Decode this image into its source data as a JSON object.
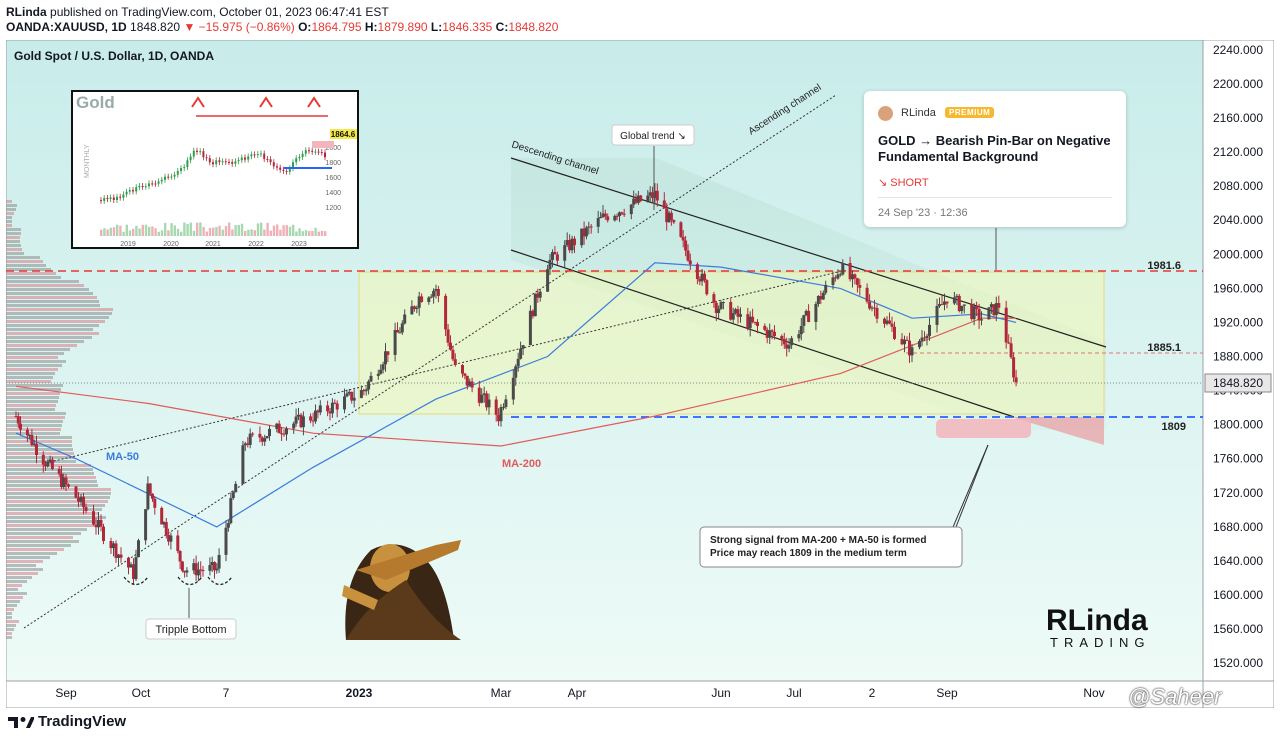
{
  "header": {
    "author": "RLinda",
    "published_text": "published on TradingView.com, October 01, 2023 06:47:41 EST",
    "symbol": "OANDA:XAUUSD, 1D",
    "price": "1848.820",
    "change_arrow": "▼",
    "change": "−15.975 (−0.86%)",
    "o_label": "O:",
    "o": "1864.795",
    "h_label": "H:",
    "h": "1879.890",
    "l_label": "L:",
    "l": "1846.335",
    "c_label": "C:",
    "c": "1848.820"
  },
  "chart_title": "Gold Spot / U.S. Dollar, 1D, OANDA",
  "footer": {
    "brand": "TradingView"
  },
  "watermark": "@Saheer",
  "inset": {
    "title": "Gold",
    "side_label": "MONTHLY",
    "price_tag": "1864.6",
    "y_ticks": [
      "2000",
      "1800",
      "1600",
      "1400",
      "1200"
    ],
    "x_ticks": [
      "2019",
      "2020",
      "2021",
      "2022",
      "2023"
    ]
  },
  "idea_card": {
    "author": "RLinda",
    "badge": "PREMIUM",
    "title": "GOLD → Bearish Pin-Bar on Negative Fundamental Background",
    "direction": "SHORT",
    "date": "24 Sep '23 · 12:36"
  },
  "annotations": {
    "global_trend": "Global trend ↘",
    "descending_channel": "Descending channel",
    "ascending_channel": "Ascending channel",
    "ma50": "MA-50",
    "ma200": "MA-200",
    "tripple_bottom": "Tripple Bottom",
    "signal_line1": "Strong signal from MA-200 + MA-50 is formed",
    "signal_line2": "Price may reach 1809 in the medium term",
    "level_1981": "1981.6",
    "level_1885": "1885.1",
    "level_1809": "1809",
    "logo_main": "RLinda",
    "logo_sub": "TRADING"
  },
  "colors": {
    "bull": "#4a4a4a",
    "bear": "#b2283b",
    "ma50": "#3b7ddd",
    "ma200": "#e05a5a",
    "resistance": "#e53935",
    "support": "#2962ff",
    "bg_top": "#cdeeed",
    "bg_bottom": "#eafaf7"
  },
  "chart_data": {
    "type": "candlestick",
    "title": "Gold Spot / U.S. Dollar, 1D, OANDA",
    "y_axis": {
      "min": 1480,
      "max": 2255,
      "ticks": [
        1520,
        1560,
        1600,
        1640,
        1680,
        1720,
        1760,
        1800,
        1840,
        1880,
        1920,
        1960,
        2000,
        2040,
        2080,
        2120,
        2160,
        2200,
        2240
      ]
    },
    "x_ticks": [
      "Sep",
      "Oct",
      "7",
      "2023",
      "Mar",
      "Apr",
      "Jun",
      "Jul",
      "2",
      "Sep",
      "Nov"
    ],
    "last_price": "1848.820",
    "levels": [
      {
        "name": "resistance",
        "value": 1981.6,
        "label": "1981.6"
      },
      {
        "name": "pin-bar-low",
        "value": 1885.1,
        "label": "1885.1"
      },
      {
        "name": "target",
        "value": 1809,
        "label": "1809"
      }
    ],
    "price_path": [
      {
        "date": "2022-08-10",
        "price": 1810
      },
      {
        "date": "2022-08-22",
        "price": 1760
      },
      {
        "date": "2022-09-05",
        "price": 1715
      },
      {
        "date": "2022-09-28",
        "price": 1625
      },
      {
        "date": "2022-10-04",
        "price": 1725
      },
      {
        "date": "2022-10-20",
        "price": 1630
      },
      {
        "date": "2022-11-03",
        "price": 1630
      },
      {
        "date": "2022-11-15",
        "price": 1780
      },
      {
        "date": "2022-12-13",
        "price": 1810
      },
      {
        "date": "2023-01-03",
        "price": 1840
      },
      {
        "date": "2023-01-26",
        "price": 1950
      },
      {
        "date": "2023-02-02",
        "price": 1960
      },
      {
        "date": "2023-02-10",
        "price": 1865
      },
      {
        "date": "2023-02-28",
        "price": 1810
      },
      {
        "date": "2023-03-20",
        "price": 1990
      },
      {
        "date": "2023-04-13",
        "price": 2045
      },
      {
        "date": "2023-05-04",
        "price": 2070
      },
      {
        "date": "2023-05-30",
        "price": 1940
      },
      {
        "date": "2023-06-29",
        "price": 1895
      },
      {
        "date": "2023-07-20",
        "price": 1985
      },
      {
        "date": "2023-08-18",
        "price": 1885
      },
      {
        "date": "2023-09-01",
        "price": 1950
      },
      {
        "date": "2023-09-15",
        "price": 1925
      },
      {
        "date": "2023-09-22",
        "price": 1940
      },
      {
        "date": "2023-09-29",
        "price": 1848.82
      }
    ],
    "series": [
      {
        "name": "MA-50",
        "values": [
          {
            "date": "2022-08-10",
            "price": 1790
          },
          {
            "date": "2022-09-05",
            "price": 1760
          },
          {
            "date": "2022-11-03",
            "price": 1680
          },
          {
            "date": "2022-12-13",
            "price": 1750
          },
          {
            "date": "2023-02-02",
            "price": 1830
          },
          {
            "date": "2023-03-20",
            "price": 1880
          },
          {
            "date": "2023-05-04",
            "price": 1990
          },
          {
            "date": "2023-06-01",
            "price": 1985
          },
          {
            "date": "2023-07-20",
            "price": 1960
          },
          {
            "date": "2023-08-18",
            "price": 1925
          },
          {
            "date": "2023-09-15",
            "price": 1930
          },
          {
            "date": "2023-09-29",
            "price": 1920
          }
        ]
      },
      {
        "name": "MA-200",
        "values": [
          {
            "date": "2022-08-10",
            "price": 1845
          },
          {
            "date": "2022-10-04",
            "price": 1825
          },
          {
            "date": "2022-12-13",
            "price": 1790
          },
          {
            "date": "2023-03-01",
            "price": 1775
          },
          {
            "date": "2023-05-04",
            "price": 1810
          },
          {
            "date": "2023-07-20",
            "price": 1860
          },
          {
            "date": "2023-09-15",
            "price": 1925
          },
          {
            "date": "2023-09-29",
            "price": 1925
          }
        ]
      }
    ]
  }
}
